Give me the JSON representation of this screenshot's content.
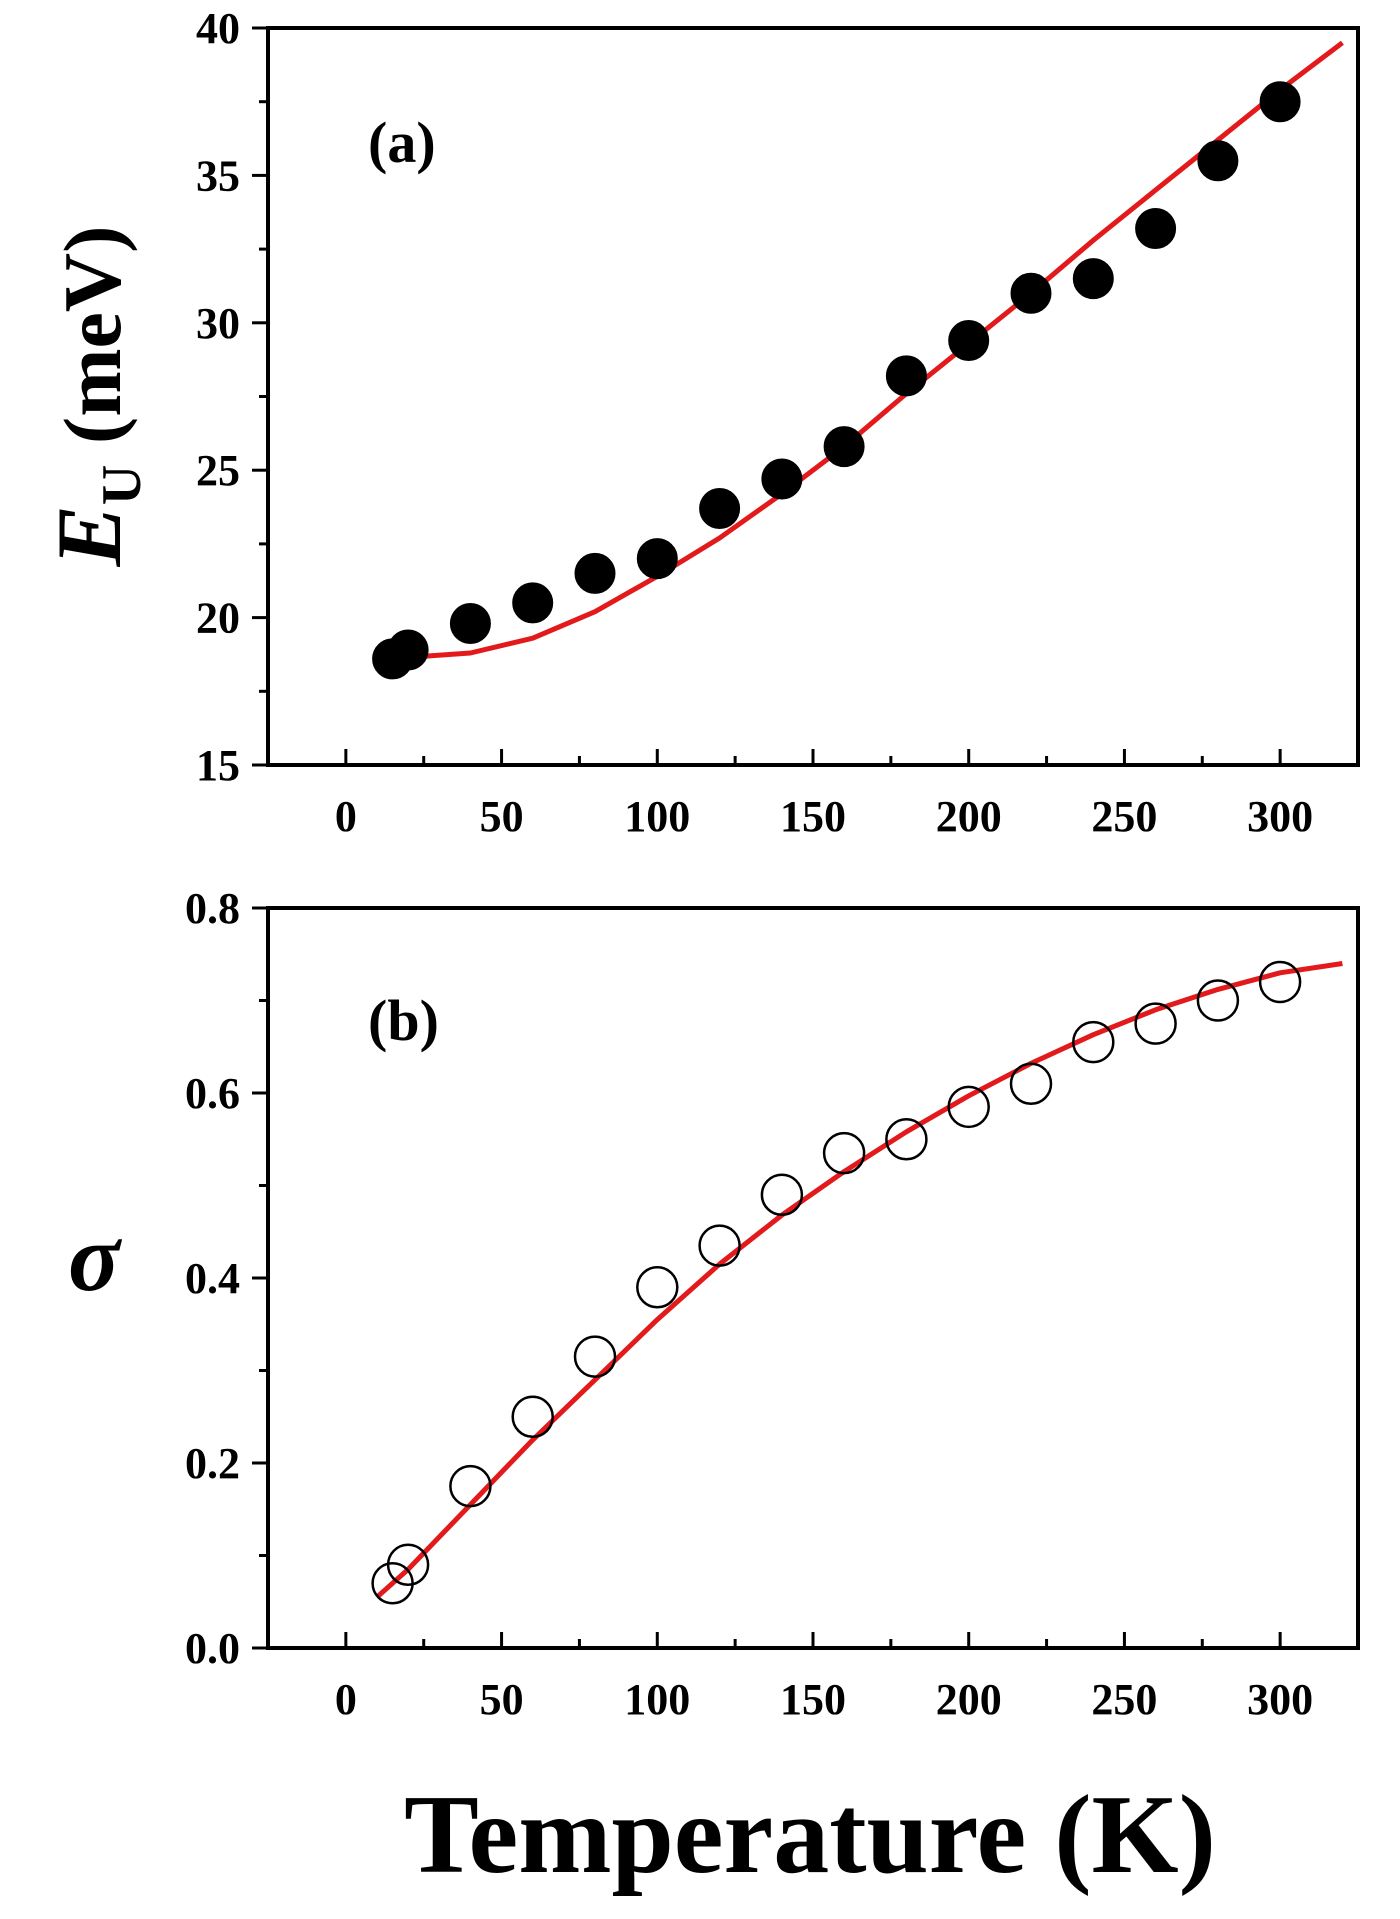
{
  "chart_data": [
    {
      "type": "scatter",
      "panel_label": "(a)",
      "ylabel_symbol": "E",
      "ylabel_subscript": "U",
      "ylabel_unit": "(meV)",
      "xlim": [
        -25,
        325
      ],
      "ylim": [
        15,
        40
      ],
      "xticks": [
        0,
        50,
        100,
        150,
        200,
        250,
        300
      ],
      "yticks": [
        15,
        20,
        25,
        30,
        35,
        40
      ],
      "xtick_labels": [
        "0",
        "50",
        "100",
        "150",
        "200",
        "250",
        "300"
      ],
      "ytick_labels": [
        "15",
        "20",
        "25",
        "30",
        "35",
        "40"
      ],
      "marker": "filled-circle",
      "series": [
        {
          "name": "data",
          "x": [
            15,
            20,
            40,
            60,
            80,
            100,
            120,
            140,
            160,
            180,
            200,
            220,
            240,
            260,
            280,
            300
          ],
          "y": [
            18.6,
            18.9,
            19.8,
            20.5,
            21.5,
            22.0,
            23.7,
            24.7,
            25.8,
            28.2,
            29.4,
            31.0,
            31.5,
            33.2,
            35.5,
            37.5
          ]
        },
        {
          "name": "fit",
          "x": [
            10,
            20,
            40,
            60,
            80,
            100,
            120,
            140,
            160,
            180,
            200,
            220,
            240,
            260,
            280,
            300,
            320
          ],
          "y": [
            18.7,
            18.65,
            18.8,
            19.3,
            20.2,
            21.4,
            22.7,
            24.2,
            25.8,
            27.6,
            29.3,
            31.0,
            32.8,
            34.5,
            36.2,
            37.9,
            39.5
          ]
        }
      ]
    },
    {
      "type": "scatter",
      "panel_label": "(b)",
      "ylabel_symbol": "σ",
      "xlabel": "Temperature (K)",
      "xlim": [
        -25,
        325
      ],
      "ylim": [
        0.0,
        0.8
      ],
      "xticks": [
        0,
        50,
        100,
        150,
        200,
        250,
        300
      ],
      "yticks": [
        0.0,
        0.2,
        0.4,
        0.6,
        0.8
      ],
      "xtick_labels": [
        "0",
        "50",
        "100",
        "150",
        "200",
        "250",
        "300"
      ],
      "ytick_labels": [
        "0.0",
        "0.2",
        "0.4",
        "0.6",
        "0.8"
      ],
      "marker": "open-circle",
      "series": [
        {
          "name": "data",
          "x": [
            15,
            20,
            40,
            60,
            80,
            100,
            120,
            140,
            160,
            180,
            200,
            220,
            240,
            260,
            280,
            300
          ],
          "y": [
            0.07,
            0.09,
            0.175,
            0.25,
            0.315,
            0.39,
            0.435,
            0.49,
            0.535,
            0.55,
            0.585,
            0.61,
            0.655,
            0.675,
            0.7,
            0.72
          ]
        },
        {
          "name": "fit",
          "x": [
            10,
            20,
            40,
            60,
            80,
            100,
            120,
            140,
            160,
            180,
            200,
            220,
            240,
            260,
            280,
            300,
            320
          ],
          "y": [
            0.055,
            0.085,
            0.155,
            0.225,
            0.29,
            0.355,
            0.415,
            0.468,
            0.515,
            0.558,
            0.597,
            0.632,
            0.663,
            0.69,
            0.712,
            0.73,
            0.74
          ]
        }
      ]
    }
  ],
  "colors": {
    "fit_line": "#e31a1c",
    "marker": "#000000",
    "axis": "#000000"
  }
}
